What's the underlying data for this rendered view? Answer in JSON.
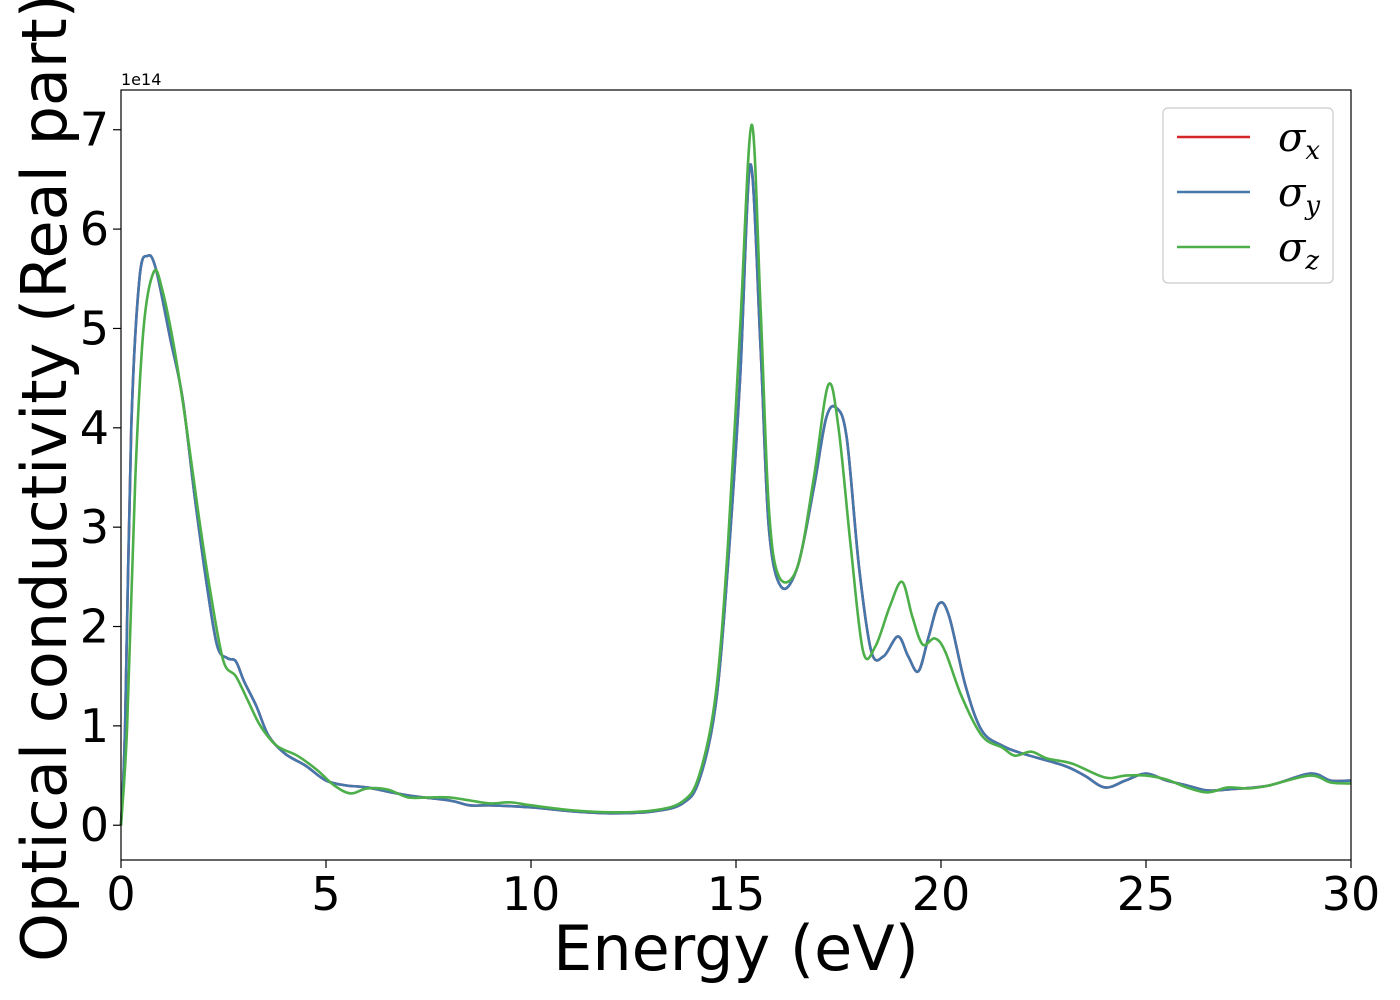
{
  "chart_data": {
    "type": "line",
    "title": "",
    "xlabel": "Energy (eV)",
    "ylabel": "Optical conductivity (Real part)",
    "y_offset_label": "1e14",
    "xlim": [
      0,
      30
    ],
    "ylim": [
      -0.35,
      7.4
    ],
    "y_scale_factor": 100000000000000.0,
    "xticks": [
      0,
      5,
      10,
      15,
      20,
      25,
      30
    ],
    "yticks": [
      0,
      1,
      2,
      3,
      4,
      5,
      6,
      7
    ],
    "grid": false,
    "legend_position": "top-right",
    "series": [
      {
        "name": "σx",
        "legend_main": "σ",
        "legend_sub": "x",
        "color": "#d62728",
        "points": [
          [
            0,
            0
          ],
          [
            0.1,
            1.0
          ],
          [
            0.25,
            4.0
          ],
          [
            0.45,
            5.5
          ],
          [
            0.65,
            5.73
          ],
          [
            0.85,
            5.6
          ],
          [
            1.2,
            4.9
          ],
          [
            1.5,
            4.3
          ],
          [
            1.8,
            3.3
          ],
          [
            2.1,
            2.4
          ],
          [
            2.35,
            1.8
          ],
          [
            2.6,
            1.68
          ],
          [
            2.8,
            1.65
          ],
          [
            3.0,
            1.45
          ],
          [
            3.3,
            1.2
          ],
          [
            3.6,
            0.9
          ],
          [
            4.0,
            0.72
          ],
          [
            4.5,
            0.6
          ],
          [
            5.0,
            0.45
          ],
          [
            5.5,
            0.4
          ],
          [
            6.0,
            0.38
          ],
          [
            7.0,
            0.3
          ],
          [
            8.0,
            0.25
          ],
          [
            8.5,
            0.2
          ],
          [
            9.0,
            0.2
          ],
          [
            10.0,
            0.18
          ],
          [
            11.0,
            0.14
          ],
          [
            12.0,
            0.12
          ],
          [
            13.0,
            0.14
          ],
          [
            13.7,
            0.22
          ],
          [
            14.1,
            0.45
          ],
          [
            14.5,
            1.2
          ],
          [
            14.8,
            2.6
          ],
          [
            15.1,
            4.5
          ],
          [
            15.35,
            6.65
          ],
          [
            15.6,
            4.8
          ],
          [
            15.8,
            3.0
          ],
          [
            16.1,
            2.4
          ],
          [
            16.5,
            2.6
          ],
          [
            16.9,
            3.4
          ],
          [
            17.2,
            4.1
          ],
          [
            17.45,
            4.2
          ],
          [
            17.7,
            3.9
          ],
          [
            18.0,
            2.6
          ],
          [
            18.3,
            1.75
          ],
          [
            18.6,
            1.7
          ],
          [
            18.95,
            1.9
          ],
          [
            19.2,
            1.7
          ],
          [
            19.45,
            1.55
          ],
          [
            19.7,
            1.9
          ],
          [
            19.95,
            2.23
          ],
          [
            20.2,
            2.1
          ],
          [
            20.6,
            1.4
          ],
          [
            21.0,
            0.95
          ],
          [
            21.5,
            0.8
          ],
          [
            22.0,
            0.72
          ],
          [
            23.0,
            0.6
          ],
          [
            23.5,
            0.5
          ],
          [
            24.0,
            0.38
          ],
          [
            24.5,
            0.45
          ],
          [
            25.0,
            0.52
          ],
          [
            25.5,
            0.45
          ],
          [
            26.0,
            0.4
          ],
          [
            26.5,
            0.35
          ],
          [
            27.0,
            0.36
          ],
          [
            28.0,
            0.4
          ],
          [
            29.0,
            0.52
          ],
          [
            29.5,
            0.45
          ],
          [
            30.0,
            0.45
          ]
        ]
      },
      {
        "name": "σy",
        "legend_main": "σ",
        "legend_sub": "y",
        "color": "#4478ad",
        "points": [
          [
            0,
            0
          ],
          [
            0.1,
            1.0
          ],
          [
            0.25,
            4.0
          ],
          [
            0.45,
            5.5
          ],
          [
            0.65,
            5.73
          ],
          [
            0.85,
            5.6
          ],
          [
            1.2,
            4.9
          ],
          [
            1.5,
            4.3
          ],
          [
            1.8,
            3.3
          ],
          [
            2.1,
            2.4
          ],
          [
            2.35,
            1.8
          ],
          [
            2.6,
            1.68
          ],
          [
            2.8,
            1.65
          ],
          [
            3.0,
            1.45
          ],
          [
            3.3,
            1.2
          ],
          [
            3.6,
            0.9
          ],
          [
            4.0,
            0.72
          ],
          [
            4.5,
            0.6
          ],
          [
            5.0,
            0.45
          ],
          [
            5.5,
            0.4
          ],
          [
            6.0,
            0.38
          ],
          [
            7.0,
            0.3
          ],
          [
            8.0,
            0.25
          ],
          [
            8.5,
            0.2
          ],
          [
            9.0,
            0.2
          ],
          [
            10.0,
            0.18
          ],
          [
            11.0,
            0.14
          ],
          [
            12.0,
            0.12
          ],
          [
            13.0,
            0.14
          ],
          [
            13.7,
            0.22
          ],
          [
            14.1,
            0.45
          ],
          [
            14.5,
            1.2
          ],
          [
            14.8,
            2.6
          ],
          [
            15.1,
            4.5
          ],
          [
            15.35,
            6.65
          ],
          [
            15.6,
            4.8
          ],
          [
            15.8,
            3.0
          ],
          [
            16.1,
            2.4
          ],
          [
            16.5,
            2.6
          ],
          [
            16.9,
            3.4
          ],
          [
            17.2,
            4.1
          ],
          [
            17.45,
            4.2
          ],
          [
            17.7,
            3.9
          ],
          [
            18.0,
            2.6
          ],
          [
            18.3,
            1.75
          ],
          [
            18.6,
            1.7
          ],
          [
            18.95,
            1.9
          ],
          [
            19.2,
            1.7
          ],
          [
            19.45,
            1.55
          ],
          [
            19.7,
            1.9
          ],
          [
            19.95,
            2.23
          ],
          [
            20.2,
            2.1
          ],
          [
            20.6,
            1.4
          ],
          [
            21.0,
            0.95
          ],
          [
            21.5,
            0.8
          ],
          [
            22.0,
            0.72
          ],
          [
            23.0,
            0.6
          ],
          [
            23.5,
            0.5
          ],
          [
            24.0,
            0.38
          ],
          [
            24.5,
            0.45
          ],
          [
            25.0,
            0.52
          ],
          [
            25.5,
            0.45
          ],
          [
            26.0,
            0.4
          ],
          [
            26.5,
            0.35
          ],
          [
            27.0,
            0.36
          ],
          [
            28.0,
            0.4
          ],
          [
            29.0,
            0.52
          ],
          [
            29.5,
            0.45
          ],
          [
            30.0,
            0.45
          ]
        ]
      },
      {
        "name": "σz",
        "legend_main": "σ",
        "legend_sub": "z",
        "color": "#4daf4a",
        "points": [
          [
            0,
            0
          ],
          [
            0.15,
            1.0
          ],
          [
            0.35,
            3.5
          ],
          [
            0.55,
            5.0
          ],
          [
            0.8,
            5.57
          ],
          [
            1.0,
            5.4
          ],
          [
            1.3,
            4.8
          ],
          [
            1.6,
            4.0
          ],
          [
            1.9,
            3.1
          ],
          [
            2.2,
            2.3
          ],
          [
            2.5,
            1.65
          ],
          [
            2.8,
            1.5
          ],
          [
            3.1,
            1.25
          ],
          [
            3.4,
            1.0
          ],
          [
            3.8,
            0.8
          ],
          [
            4.3,
            0.7
          ],
          [
            4.8,
            0.55
          ],
          [
            5.2,
            0.4
          ],
          [
            5.6,
            0.32
          ],
          [
            6.0,
            0.37
          ],
          [
            6.5,
            0.36
          ],
          [
            7.0,
            0.28
          ],
          [
            7.5,
            0.28
          ],
          [
            8.0,
            0.28
          ],
          [
            8.5,
            0.25
          ],
          [
            9.0,
            0.22
          ],
          [
            9.5,
            0.23
          ],
          [
            10.0,
            0.2
          ],
          [
            11.0,
            0.15
          ],
          [
            12.0,
            0.13
          ],
          [
            13.0,
            0.15
          ],
          [
            13.7,
            0.24
          ],
          [
            14.1,
            0.5
          ],
          [
            14.5,
            1.3
          ],
          [
            14.8,
            2.8
          ],
          [
            15.1,
            5.0
          ],
          [
            15.38,
            7.05
          ],
          [
            15.6,
            5.2
          ],
          [
            15.8,
            3.2
          ],
          [
            16.05,
            2.5
          ],
          [
            16.5,
            2.6
          ],
          [
            16.9,
            3.5
          ],
          [
            17.25,
            4.43
          ],
          [
            17.5,
            4.0
          ],
          [
            17.8,
            2.8
          ],
          [
            18.1,
            1.75
          ],
          [
            18.4,
            1.8
          ],
          [
            18.75,
            2.2
          ],
          [
            19.05,
            2.45
          ],
          [
            19.3,
            2.1
          ],
          [
            19.55,
            1.82
          ],
          [
            19.85,
            1.88
          ],
          [
            20.1,
            1.75
          ],
          [
            20.5,
            1.3
          ],
          [
            21.0,
            0.9
          ],
          [
            21.5,
            0.78
          ],
          [
            21.8,
            0.7
          ],
          [
            22.2,
            0.74
          ],
          [
            22.6,
            0.67
          ],
          [
            23.2,
            0.62
          ],
          [
            24.0,
            0.48
          ],
          [
            24.5,
            0.5
          ],
          [
            25.0,
            0.5
          ],
          [
            25.5,
            0.46
          ],
          [
            26.0,
            0.38
          ],
          [
            26.5,
            0.33
          ],
          [
            27.0,
            0.38
          ],
          [
            27.5,
            0.37
          ],
          [
            28.0,
            0.4
          ],
          [
            29.0,
            0.5
          ],
          [
            29.5,
            0.43
          ],
          [
            30.0,
            0.42
          ]
        ]
      }
    ]
  }
}
